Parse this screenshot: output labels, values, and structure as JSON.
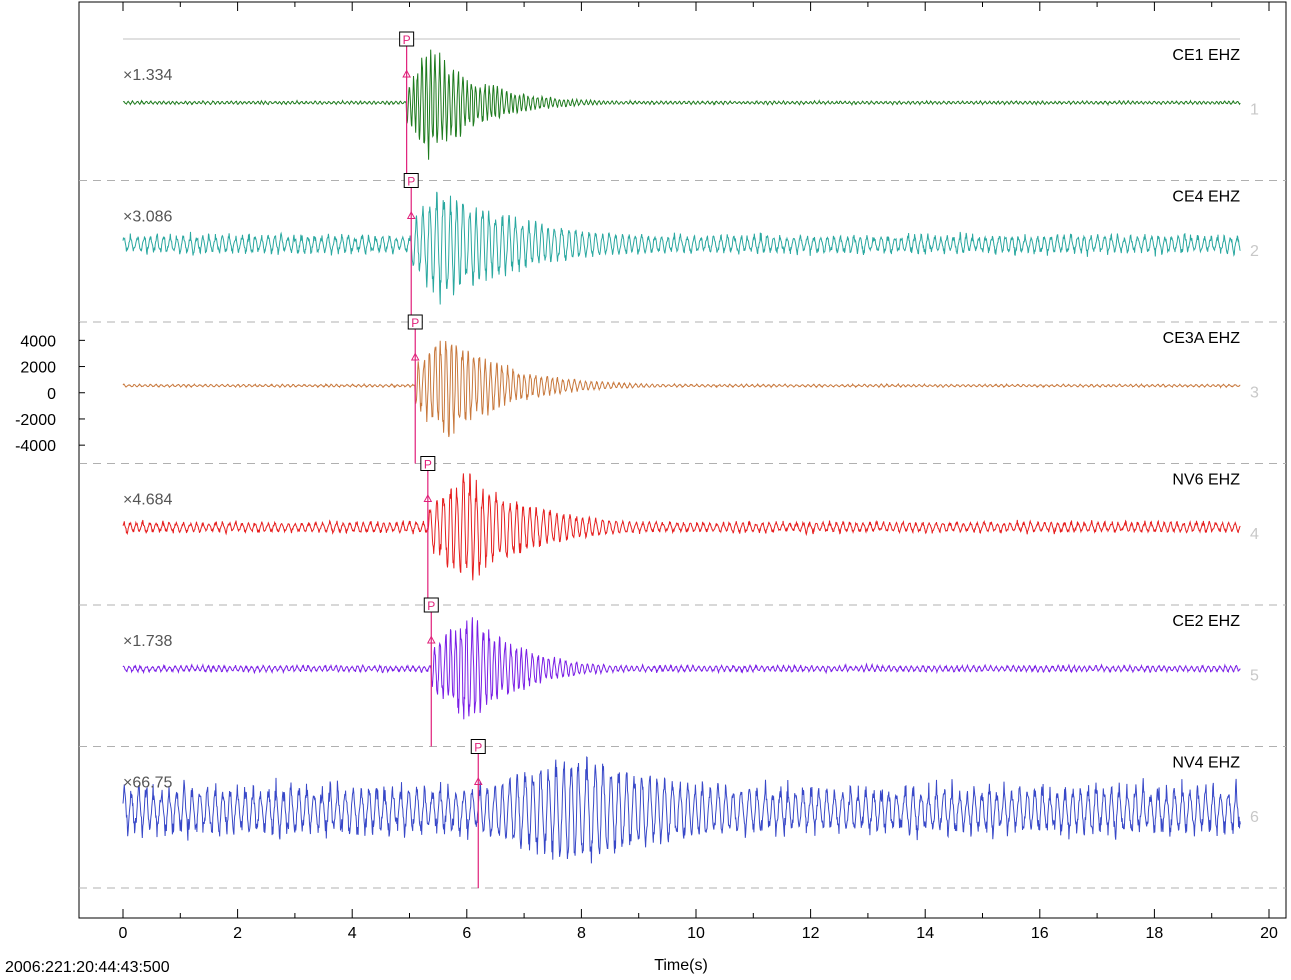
{
  "chart_data": {
    "type": "line",
    "title": "",
    "xlabel": "Time(s)",
    "ylabel": "",
    "xlim": [
      -0.75,
      20
    ],
    "x_ticks": [
      0,
      2,
      4,
      6,
      8,
      10,
      12,
      14,
      16,
      18,
      20
    ],
    "y_ticks": [
      4000,
      2000,
      0,
      -2000,
      -4000
    ],
    "y_tick_labels": [
      "4000",
      "2000",
      "0",
      "-2000",
      "-4000"
    ],
    "reference_trace": 3,
    "reference_ylim": [
      -5400,
      5400
    ],
    "start_time_label": "2006:221:20:44:43:500",
    "trace_time_end": 19.5,
    "grid": false,
    "pick_label": "P",
    "series": [
      {
        "index": 1,
        "index_label": "1",
        "name": "CE1 EHZ",
        "color": "#1e7b1e",
        "scale_label": "×1.334",
        "pick_time": 4.95,
        "peak_time": 5.35,
        "decay_s": 0.9,
        "amp_frac": 1.0,
        "noise_frac": 0.006,
        "wave_period": 0.08
      },
      {
        "index": 2,
        "index_label": "2",
        "name": "CE4 EHZ",
        "color": "#2aa8a0",
        "scale_label": "×3.086",
        "pick_time": 5.03,
        "peak_time": 5.5,
        "decay_s": 1.8,
        "amp_frac": 1.0,
        "noise_frac": 0.035,
        "wave_period": 0.12
      },
      {
        "index": 3,
        "index_label": "3",
        "name": "CE3A EHZ",
        "color": "#c8783c",
        "scale_label": "",
        "pick_time": 5.1,
        "peak_time": 5.65,
        "decay_s": 1.0,
        "amp_frac": 1.0,
        "noise_frac": 0.005,
        "wave_period": 0.1
      },
      {
        "index": 4,
        "index_label": "4",
        "name": "NV6 EHZ",
        "color": "#e61e1e",
        "scale_label": "×4.684",
        "pick_time": 5.32,
        "peak_time": 6.0,
        "decay_s": 1.2,
        "amp_frac": 1.0,
        "noise_frac": 0.02,
        "wave_period": 0.12
      },
      {
        "index": 5,
        "index_label": "5",
        "name": "CE2 EHZ",
        "color": "#7a1ee6",
        "scale_label": "×1.738",
        "pick_time": 5.38,
        "peak_time": 6.05,
        "decay_s": 0.9,
        "amp_frac": 1.0,
        "noise_frac": 0.012,
        "wave_period": 0.1
      },
      {
        "index": 6,
        "index_label": "6",
        "name": "NV4 EHZ",
        "color": "#3848c8",
        "scale_label": "×66.75",
        "pick_time": 6.2,
        "peak_time": 7.9,
        "decay_s": 2.6,
        "amp_frac": 1.0,
        "noise_frac": 0.09,
        "wave_period": 0.14
      }
    ]
  },
  "colors": {
    "axis": "#000000",
    "panel_divider": "#b0b0b0",
    "panel_top_line": "#c0c0c0",
    "pick": "#e0207a",
    "scale_label": "#555555",
    "index_label": "#c8c8c8"
  }
}
